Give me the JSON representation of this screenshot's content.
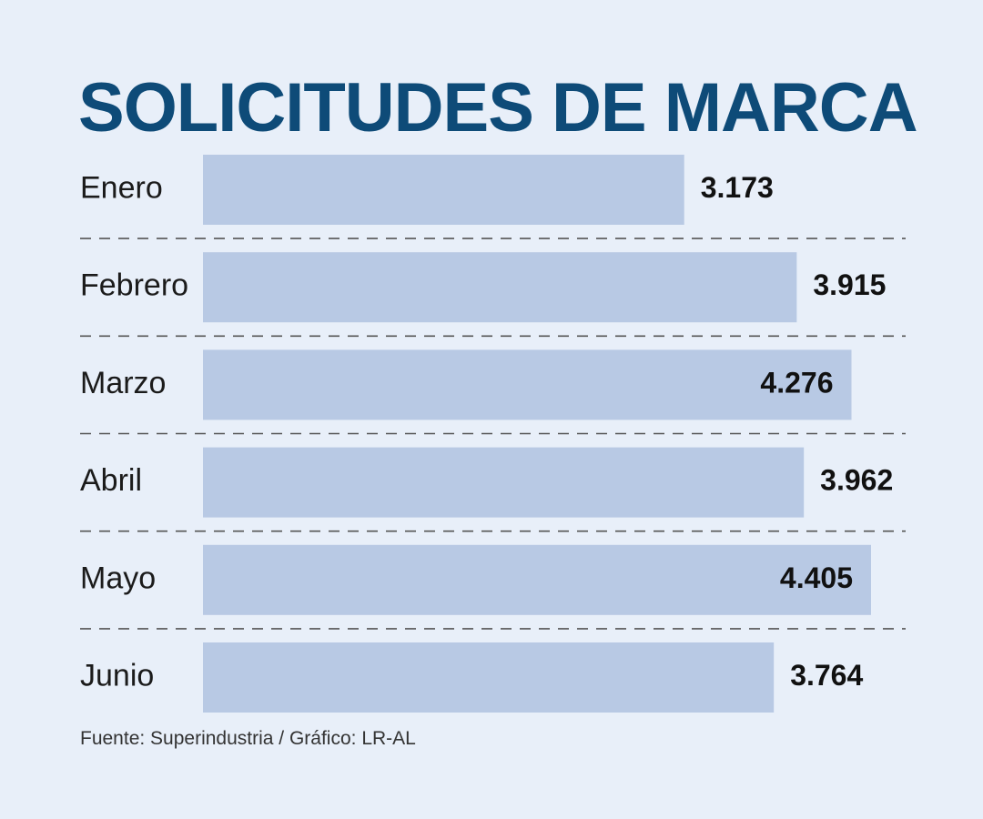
{
  "chart_data": {
    "type": "bar",
    "orientation": "horizontal",
    "title": "SOLICITUDES DE MARCA",
    "categories": [
      "Enero",
      "Febrero",
      "Marzo",
      "Abril",
      "Mayo",
      "Junio"
    ],
    "values": [
      3173,
      3915,
      4276,
      3962,
      4405,
      3764
    ],
    "value_labels": [
      "3.173",
      "3.915",
      "4.276",
      "3.962",
      "4.405",
      "3.764"
    ],
    "grid": false,
    "legend": "none"
  },
  "source": "Fuente: Superindustria / Gráfico: LR-AL",
  "colors": {
    "background": "#e8eff9",
    "bar": "#b8c9e4",
    "title": "#0e4b78",
    "divider": "#555555"
  }
}
